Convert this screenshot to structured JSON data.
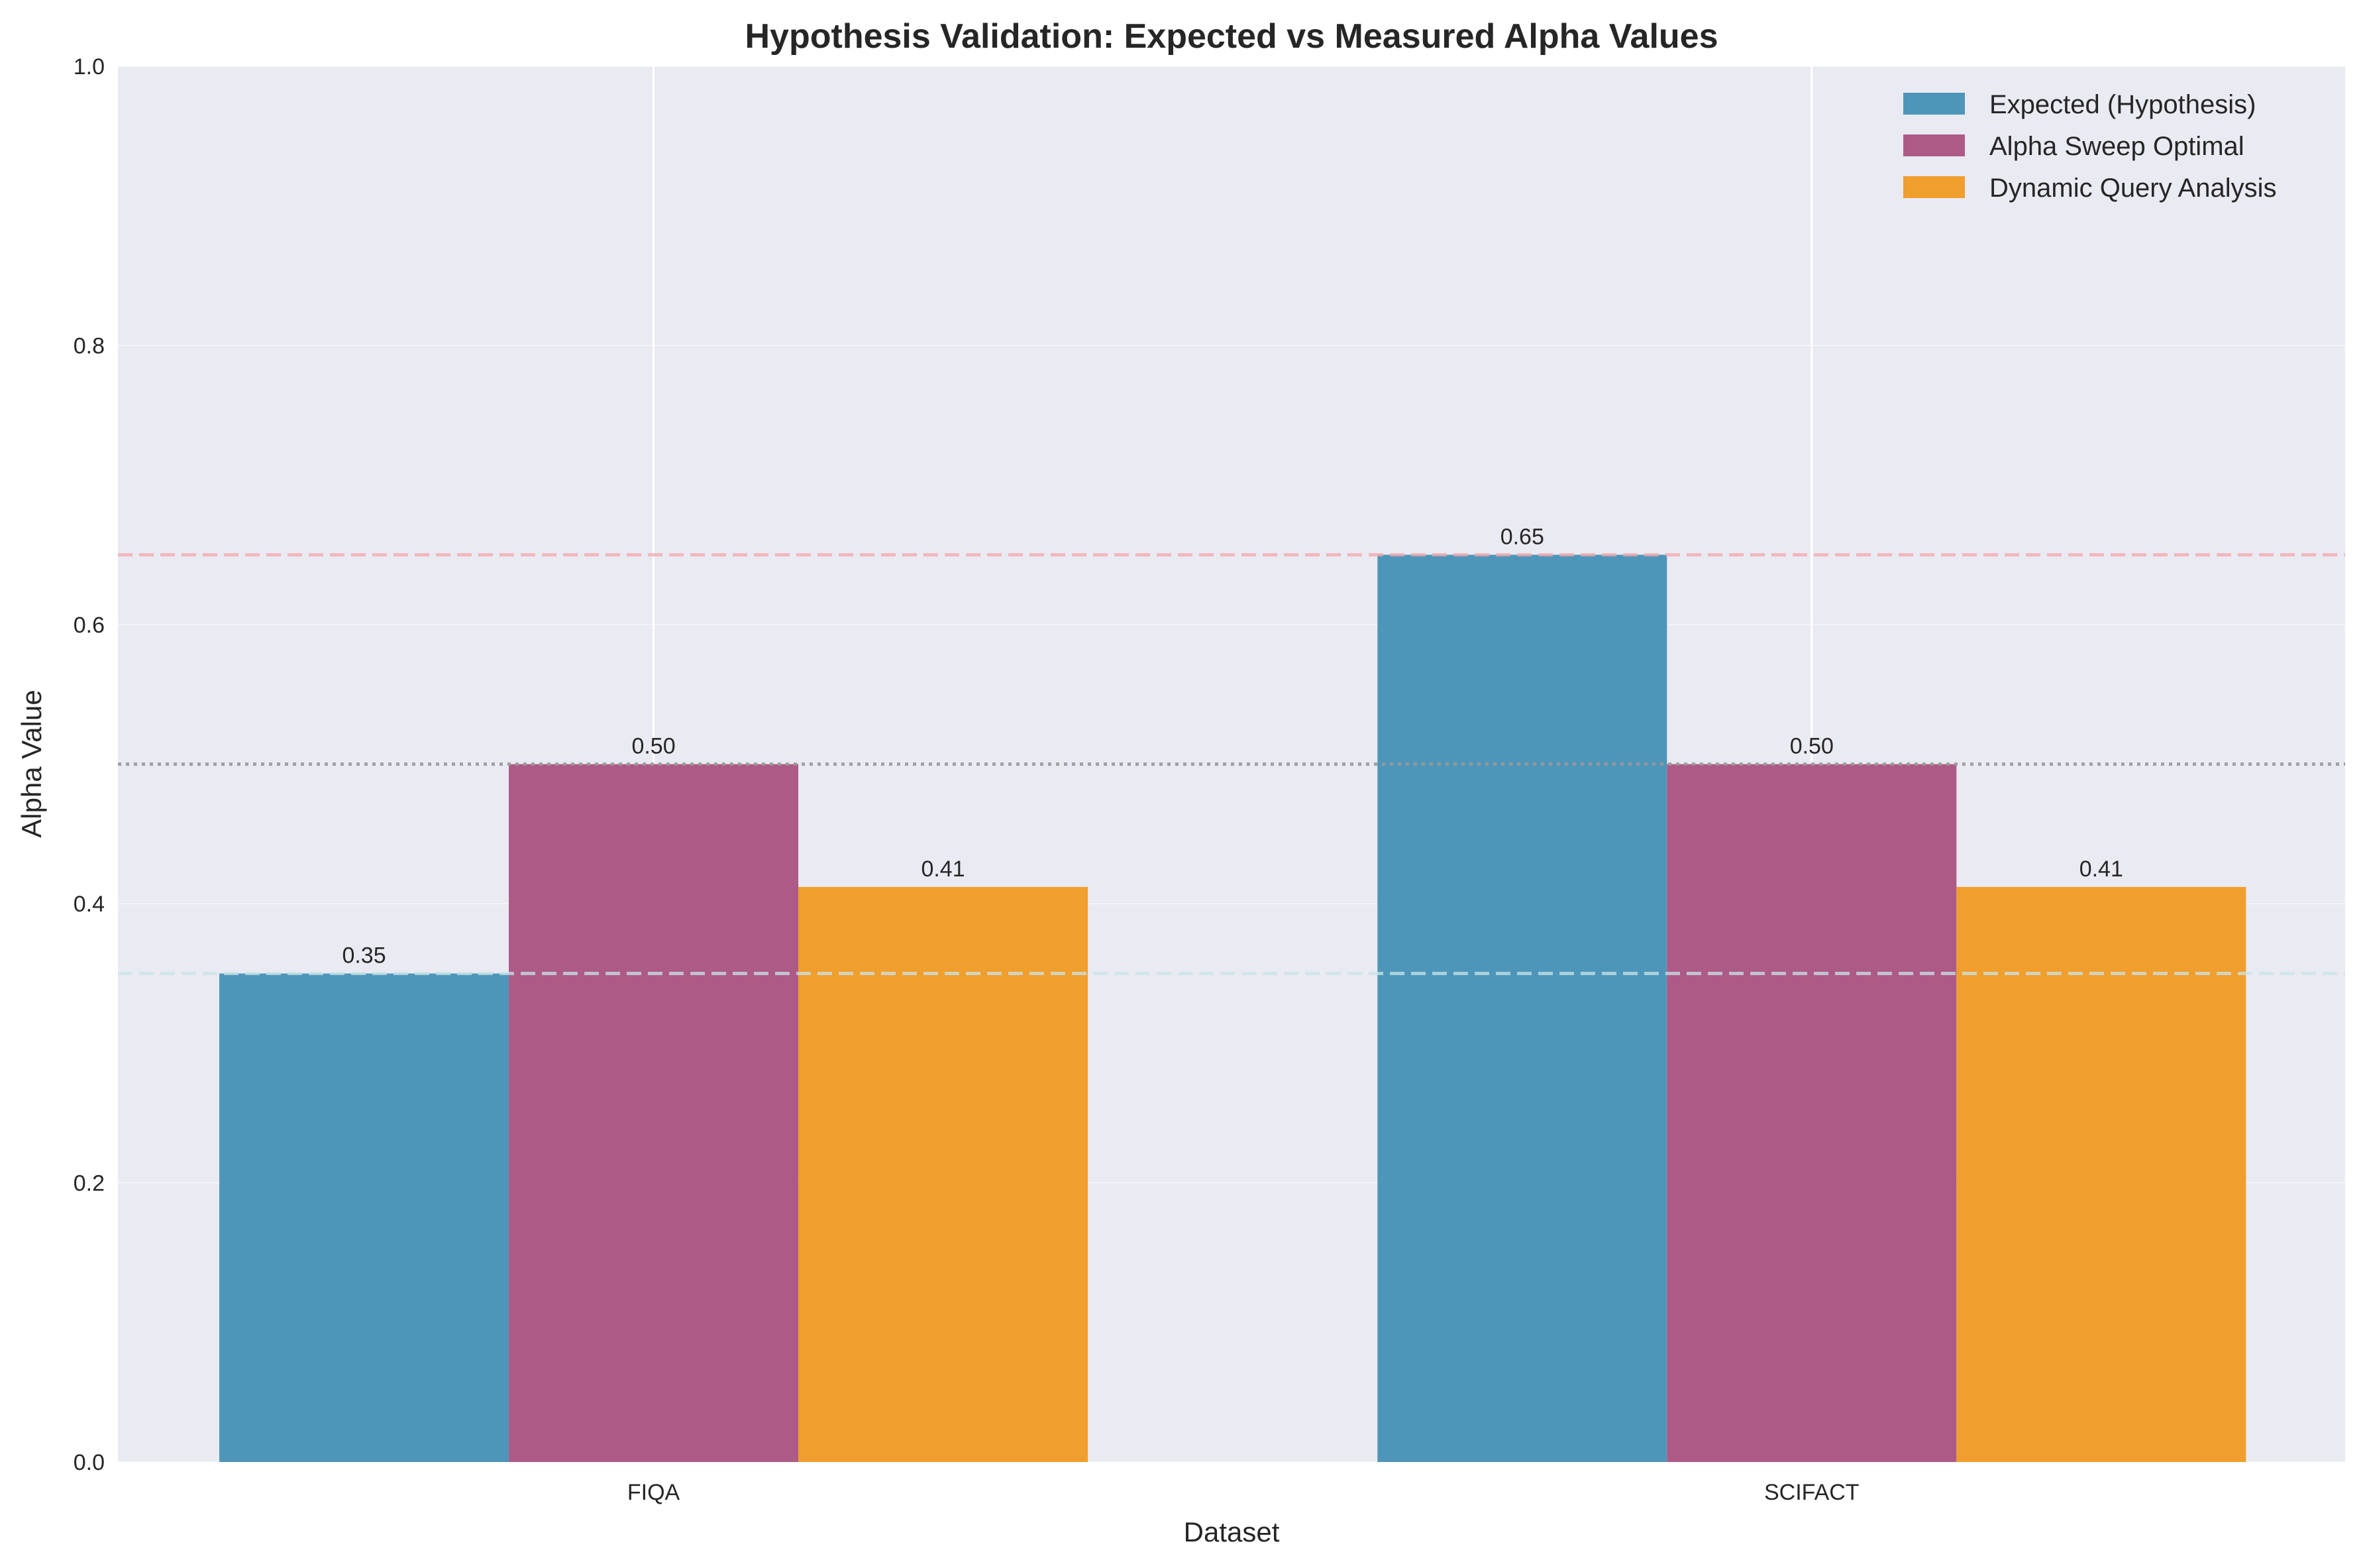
{
  "chart_data": {
    "type": "bar",
    "title": "Hypothesis Validation: Expected vs Measured Alpha Values",
    "xlabel": "Dataset",
    "ylabel": "Alpha Value",
    "categories": [
      "FIQA",
      "SCIFACT"
    ],
    "ylim": [
      0,
      1.0
    ],
    "yticks": [
      "0.0",
      "0.2",
      "0.4",
      "0.6",
      "0.8",
      "1.0"
    ],
    "series": [
      {
        "name": "Expected (Hypothesis)",
        "values": [
          0.35,
          0.65
        ],
        "labels": [
          "0.35",
          "0.65"
        ],
        "color": "#4e96b9"
      },
      {
        "name": "Alpha Sweep Optimal",
        "values": [
          0.5,
          0.5
        ],
        "labels": [
          "0.50",
          "0.50"
        ],
        "color": "#ad5a87"
      },
      {
        "name": "Dynamic Query Analysis",
        "values": [
          0.412,
          0.412
        ],
        "labels": [
          "0.41",
          "0.41"
        ],
        "color": "#f09e2e"
      }
    ],
    "reference_lines": [
      {
        "value": 0.65,
        "style": "dashed",
        "color": "#f4a6ab"
      },
      {
        "value": 0.5,
        "style": "dotted",
        "color": "#999999"
      },
      {
        "value": 0.35,
        "style": "dashed",
        "color": "#c8e4e8"
      }
    ],
    "grid": true,
    "legend": "top-right",
    "background": "#eaeaf2"
  }
}
